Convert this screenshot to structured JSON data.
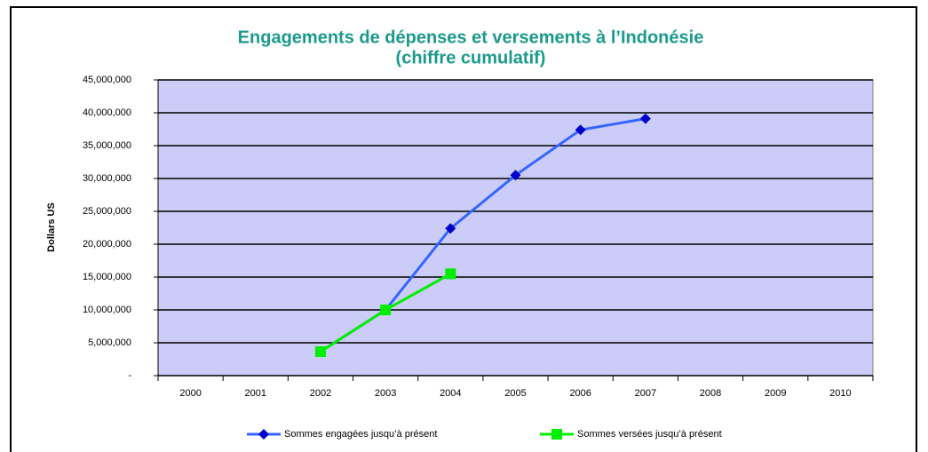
{
  "chart_data": {
    "type": "line",
    "title": [
      "Engagements de dépenses et versements à l’Indonésie",
      "(chiffre cumulatif)"
    ],
    "y_label": "Dollars US",
    "categories": [
      "2000",
      "2001",
      "2002",
      "2003",
      "2004",
      "2005",
      "2006",
      "2007",
      "2008",
      "2009",
      "2010"
    ],
    "series": [
      {
        "name": "Sommes engagées jusqu’à présent",
        "color": "#3366ff",
        "marker_color": "#0000cc",
        "marker": "diamond",
        "values": [
          null,
          null,
          3650000,
          10000000,
          22400000,
          30500000,
          37400000,
          39100000,
          null,
          null,
          null
        ]
      },
      {
        "name": "Sommes versées jusqu’à présent",
        "color": "#00ee00",
        "marker_color": "#00ee00",
        "marker": "square",
        "values": [
          null,
          null,
          3650000,
          10000000,
          15500000,
          null,
          null,
          null,
          null,
          null,
          null
        ]
      }
    ],
    "ylim": [
      0,
      45000000
    ],
    "yticks": [
      {
        "value": 0,
        "label": "-"
      },
      {
        "value": 5000000,
        "label": "5,000,000"
      },
      {
        "value": 10000000,
        "label": "10,000,000"
      },
      {
        "value": 15000000,
        "label": "15,000,000"
      },
      {
        "value": 20000000,
        "label": "20,000,000"
      },
      {
        "value": 25000000,
        "label": "25,000,000"
      },
      {
        "value": 30000000,
        "label": "30,000,000"
      },
      {
        "value": 35000000,
        "label": "35,000,000"
      },
      {
        "value": 40000000,
        "label": "40,000,000"
      },
      {
        "value": 45000000,
        "label": "45,000,000"
      }
    ],
    "grid": true,
    "plot_background": "#ccccf8",
    "legend": "bottom"
  }
}
